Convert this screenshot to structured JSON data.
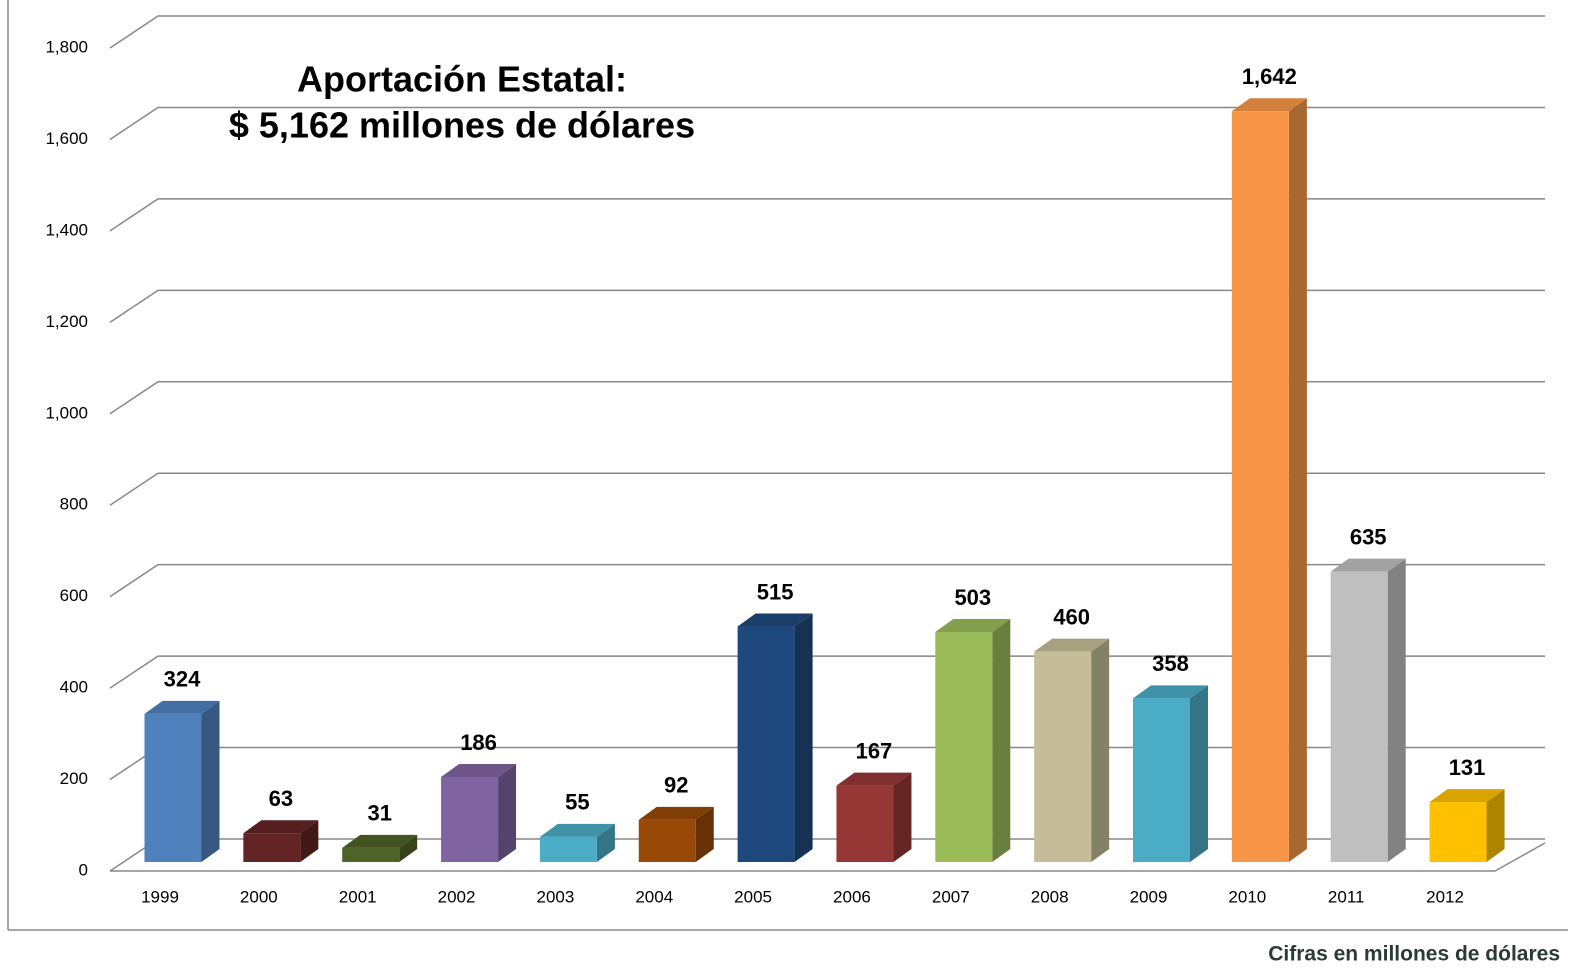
{
  "chart_data": {
    "type": "bar3d",
    "annotations": [
      "Aportación Estatal:",
      "$ 5,162 millones de dólares"
    ],
    "caption": "Cifras en millones de dólares",
    "categories": [
      "1999",
      "2000",
      "2001",
      "2002",
      "2003",
      "2004",
      "2005",
      "2006",
      "2007",
      "2008",
      "2009",
      "2010",
      "2011",
      "2012"
    ],
    "values": [
      324,
      63,
      31,
      186,
      55,
      92,
      515,
      167,
      503,
      460,
      358,
      1642,
      635,
      131
    ],
    "value_labels": [
      "324",
      "63",
      "31",
      "186",
      "55",
      "92",
      "515",
      "167",
      "503",
      "460",
      "358",
      "1,642",
      "635",
      "131"
    ],
    "colors": [
      "#4f81bd",
      "#632523",
      "#4f6228",
      "#8064a2",
      "#4bacc6",
      "#984807",
      "#1f497d",
      "#953735",
      "#9bbb59",
      "#c4bd97",
      "#4bacc6",
      "#f79646",
      "#bfbfbf",
      "#ffc000"
    ],
    "ylim": [
      0,
      1800
    ],
    "yticks": [
      0,
      200,
      400,
      600,
      800,
      {
        "value": 1000,
        "label": "1,000"
      },
      {
        "value": 1200,
        "label": "1,200"
      },
      {
        "value": 1400,
        "label": "1,400"
      },
      {
        "value": 1600,
        "label": "1,600"
      },
      {
        "value": 1800,
        "label": "1,800"
      }
    ],
    "grid": true
  }
}
